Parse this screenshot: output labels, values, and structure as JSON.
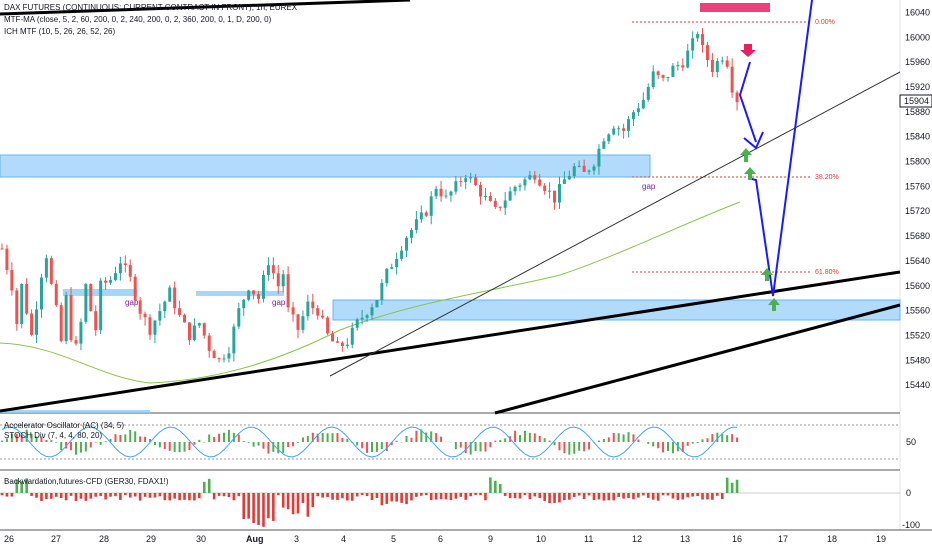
{
  "header": {
    "title": "DAX FUTURES (CONTINUOUS: CURRENT CONTRACT IN FRONT), 1h, EUREX",
    "indicator_1": "MTF-MA (close, 5, 2, 60, 200, 0, 2, 240, 200, 0, 2, 360, 200, 0, 1, D, 200, 0)",
    "indicator_2": "ICH MTF (10, 5, 26, 26, 52, 26)"
  },
  "price_axis": {
    "ticks": [
      "16040",
      "16000",
      "15960",
      "15920",
      "15880",
      "15840",
      "15800",
      "15760",
      "15720",
      "15680",
      "15640",
      "15600",
      "15560",
      "15520",
      "15480",
      "15440"
    ],
    "last_price": "15904"
  },
  "fib_labels": [
    "0.00%",
    "38.20%",
    "61.80%"
  ],
  "gap_labels": [
    "gap",
    "gap",
    "gap"
  ],
  "oscillator_pane": {
    "label_1": "Accelerator Oscillator (AC) (34, 5)",
    "label_2": "STOCH Div (7, 4, 4, 80, 20)",
    "tick": "50"
  },
  "backwardation_pane": {
    "label": "Backwardation,futures-CFD (GER30, FDAX1!)",
    "tick_top": "0",
    "tick_bottom": "-100"
  },
  "time_axis": {
    "ticks": [
      "26",
      "27",
      "28",
      "29",
      "30",
      "Aug",
      "3",
      "4",
      "5",
      "6",
      "9",
      "10",
      "11",
      "12",
      "13",
      "16",
      "17",
      "18",
      "19"
    ]
  },
  "colors": {
    "up": "#26a69a",
    "down": "#ef5350",
    "zone": "#90caf9",
    "trend": "#000000",
    "projection": "#1a1aff",
    "ma": "#8bc34a"
  },
  "chart_data": {
    "type": "candlestick",
    "title": "DAX FUTURES (CONTINUOUS: CURRENT CONTRACT IN FRONT), 1h, EUREX",
    "x_ticks": [
      "26",
      "27",
      "28",
      "29",
      "30",
      "Aug",
      "3",
      "4",
      "5",
      "6",
      "9",
      "10",
      "11",
      "12",
      "13",
      "16",
      "17",
      "18",
      "19"
    ],
    "ylim": [
      15400,
      16060
    ],
    "price_path": [
      [
        0,
        15660
      ],
      [
        2,
        15600
      ],
      [
        3,
        15540
      ],
      [
        4,
        15600
      ],
      [
        5,
        15560
      ],
      [
        6,
        15520
      ],
      [
        7,
        15570
      ],
      [
        8,
        15620
      ],
      [
        9,
        15650
      ],
      [
        10,
        15600
      ],
      [
        11,
        15560
      ],
      [
        12,
        15510
      ],
      [
        13,
        15580
      ],
      [
        14,
        15520
      ],
      [
        15,
        15500
      ],
      [
        16,
        15540
      ],
      [
        17,
        15600
      ],
      [
        18,
        15560
      ],
      [
        19,
        15530
      ],
      [
        20,
        15600
      ],
      [
        22,
        15610
      ],
      [
        24,
        15640
      ],
      [
        26,
        15610
      ],
      [
        28,
        15560
      ],
      [
        30,
        15530
      ],
      [
        32,
        15560
      ],
      [
        34,
        15590
      ],
      [
        36,
        15550
      ],
      [
        38,
        15520
      ],
      [
        40,
        15540
      ],
      [
        42,
        15500
      ],
      [
        44,
        15480
      ],
      [
        46,
        15500
      ],
      [
        48,
        15560
      ],
      [
        50,
        15600
      ],
      [
        52,
        15580
      ],
      [
        54,
        15640
      ],
      [
        56,
        15600
      ],
      [
        57,
        15620
      ],
      [
        58,
        15560
      ],
      [
        60,
        15530
      ],
      [
        62,
        15570
      ],
      [
        64,
        15560
      ],
      [
        66,
        15520
      ],
      [
        68,
        15500
      ],
      [
        70,
        15510
      ],
      [
        72,
        15540
      ],
      [
        74,
        15560
      ],
      [
        76,
        15580
      ],
      [
        78,
        15620
      ],
      [
        80,
        15650
      ],
      [
        82,
        15680
      ],
      [
        84,
        15700
      ],
      [
        86,
        15720
      ],
      [
        88,
        15760
      ],
      [
        90,
        15740
      ],
      [
        92,
        15760
      ],
      [
        94,
        15780
      ],
      [
        96,
        15760
      ],
      [
        98,
        15740
      ],
      [
        100,
        15720
      ],
      [
        102,
        15740
      ],
      [
        104,
        15760
      ],
      [
        106,
        15770
      ],
      [
        108,
        15780
      ],
      [
        110,
        15760
      ],
      [
        112,
        15740
      ],
      [
        114,
        15770
      ],
      [
        116,
        15790
      ],
      [
        118,
        15780
      ],
      [
        120,
        15800
      ],
      [
        122,
        15840
      ],
      [
        124,
        15860
      ],
      [
        126,
        15850
      ],
      [
        128,
        15880
      ],
      [
        130,
        15900
      ],
      [
        132,
        15940
      ],
      [
        134,
        15930
      ],
      [
        136,
        15950
      ],
      [
        138,
        15960
      ],
      [
        140,
        15990
      ],
      [
        141,
        16010
      ],
      [
        142,
        15980
      ],
      [
        144,
        15950
      ],
      [
        146,
        15970
      ],
      [
        147,
        15960
      ],
      [
        148,
        15920
      ],
      [
        150,
        15880
      ]
    ],
    "annotations": [
      "gap",
      "gap",
      "gap",
      "0.00%",
      "38.20%",
      "61.80%"
    ]
  }
}
